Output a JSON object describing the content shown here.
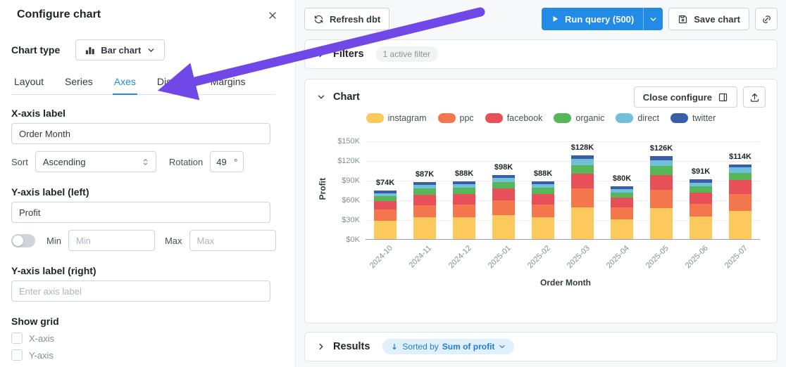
{
  "panel": {
    "title": "Configure chart",
    "chart_type": {
      "label": "Chart type",
      "value": "Bar chart"
    },
    "tabs": [
      {
        "label": "Layout"
      },
      {
        "label": "Series"
      },
      {
        "label": "Axes"
      },
      {
        "label": "Display"
      },
      {
        "label": "Margins"
      }
    ],
    "active_tab": "Axes",
    "x_axis": {
      "heading": "X-axis label",
      "value": "Order Month",
      "sort_label": "Sort",
      "sort_value": "Ascending",
      "rotation_label": "Rotation",
      "rotation_value": "49",
      "rotation_unit": "°"
    },
    "y_axis_left": {
      "heading": "Y-axis label (left)",
      "value": "Profit",
      "min_label": "Min",
      "min_placeholder": "Min",
      "max_label": "Max",
      "max_placeholder": "Max"
    },
    "y_axis_right": {
      "heading": "Y-axis label (right)",
      "placeholder": "Enter axis label"
    },
    "show_grid": {
      "heading": "Show grid",
      "options": [
        {
          "label": "X-axis"
        },
        {
          "label": "Y-axis"
        }
      ]
    }
  },
  "toolbar": {
    "refresh": "Refresh dbt",
    "run_query": "Run query (500)",
    "save": "Save chart"
  },
  "filters_section": {
    "title": "Filters",
    "badge": "1 active filter"
  },
  "chart_section": {
    "title": "Chart",
    "close_configure": "Close configure"
  },
  "results_section": {
    "title": "Results",
    "sorted_by": "Sorted by",
    "sorted_field": "Sum of profit"
  },
  "colors": {
    "accent_blue": "#228be6",
    "annotation_arrow": "#7048e8"
  },
  "chart_data": {
    "type": "bar",
    "stacked": true,
    "xlabel": "Order Month",
    "ylabel": "Profit",
    "ylim": [
      0,
      150
    ],
    "y_ticks": [
      "$0K",
      "$30K",
      "$60K",
      "$90K",
      "$120K",
      "$150K"
    ],
    "categories": [
      "2024-10",
      "2024-11",
      "2024-12",
      "2025-01",
      "2025-02",
      "2025-03",
      "2025-04",
      "2025-05",
      "2025-06",
      "2025-07"
    ],
    "totals": [
      "$74K",
      "$87K",
      "$88K",
      "$98K",
      "$88K",
      "$128K",
      "$80K",
      "$126K",
      "$91K",
      "$114K"
    ],
    "legend_position": "top-center",
    "grid": true,
    "series": [
      {
        "name": "instagram",
        "color": "#fbc95c",
        "values": [
          28,
          33,
          33,
          37,
          33,
          48,
          30,
          47,
          34,
          43
        ]
      },
      {
        "name": "ppc",
        "color": "#f4764d",
        "values": [
          17,
          19,
          20,
          22,
          20,
          29,
          18,
          28,
          20,
          26
        ]
      },
      {
        "name": "facebook",
        "color": "#e75059",
        "values": [
          13,
          16,
          16,
          18,
          16,
          23,
          15,
          23,
          17,
          21
        ]
      },
      {
        "name": "organic",
        "color": "#57b657",
        "values": [
          7,
          9,
          9,
          10,
          9,
          13,
          8,
          13,
          9,
          11
        ]
      },
      {
        "name": "direct",
        "color": "#6fc0d8",
        "values": [
          5,
          6,
          6,
          6,
          6,
          9,
          5,
          9,
          6,
          8
        ]
      },
      {
        "name": "twitter",
        "color": "#3a5da9",
        "values": [
          4,
          4,
          4,
          5,
          4,
          6,
          4,
          6,
          5,
          5
        ]
      }
    ]
  }
}
